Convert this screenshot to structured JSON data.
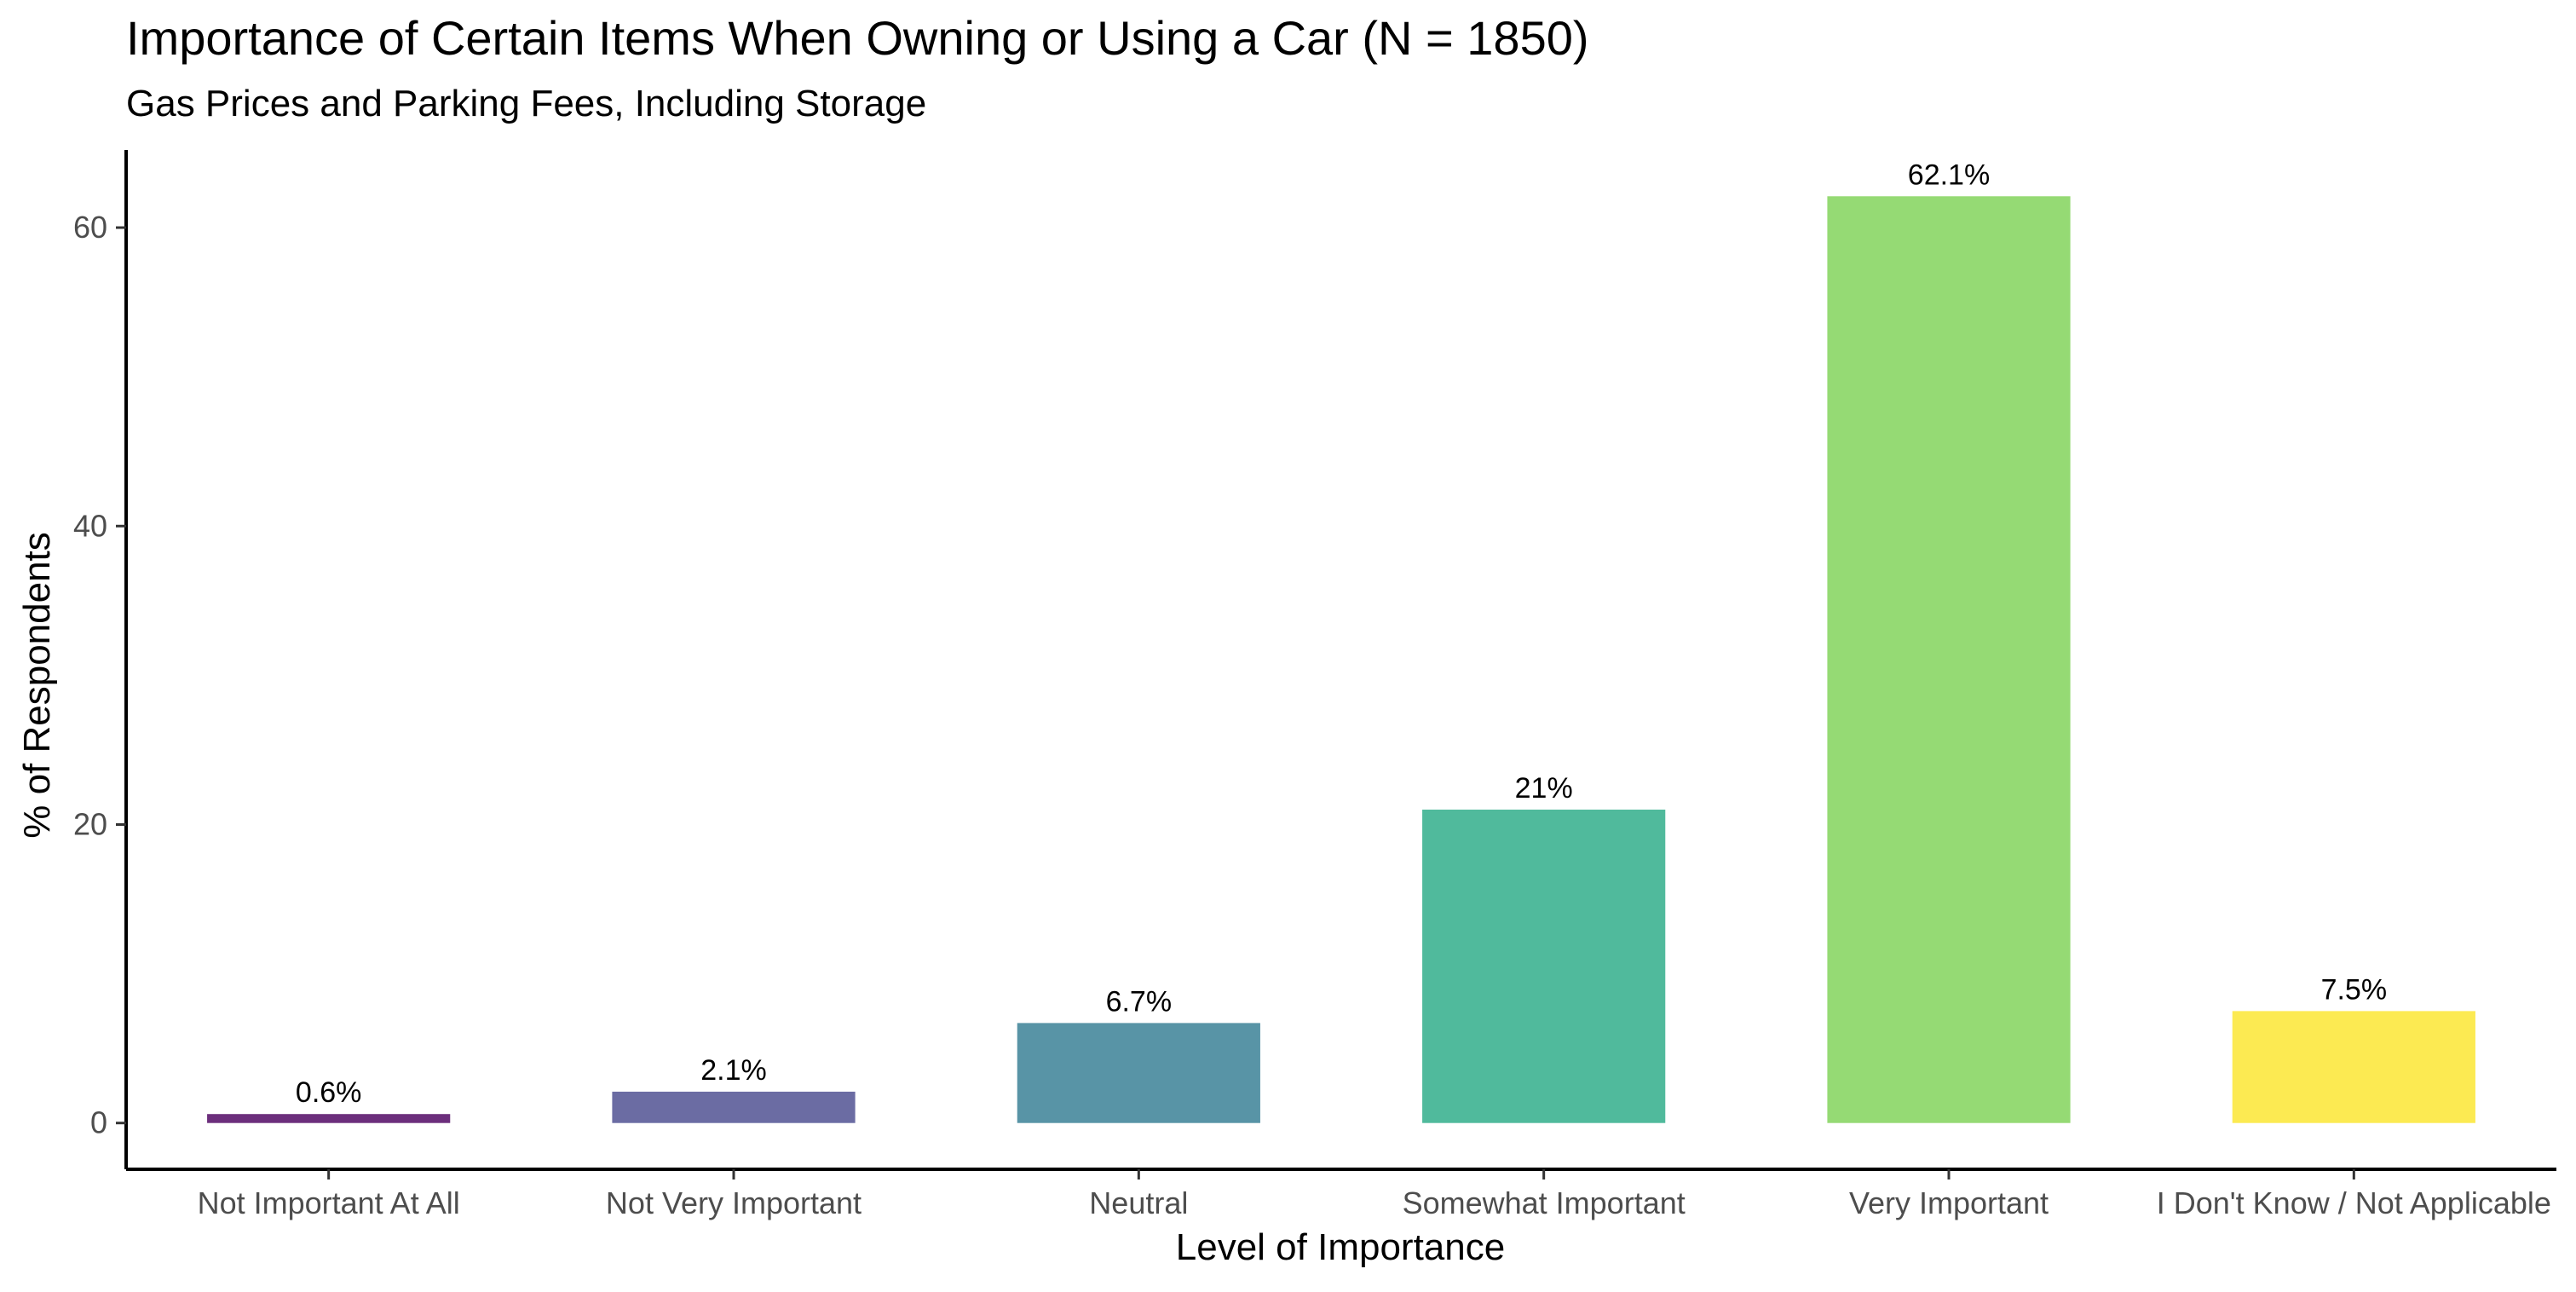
{
  "chart_data": {
    "type": "bar",
    "title": "Importance of Certain Items When Owning or Using a Car (N = 1850)",
    "subtitle": "Gas Prices and Parking Fees, Including Storage",
    "xlabel": "Level of Importance",
    "ylabel": "% of Respondents",
    "categories": [
      "Not Important At All",
      "Not Very Important",
      "Neutral",
      "Somewhat Important",
      "Very Important",
      "I Don't Know / Not Applicable"
    ],
    "values": [
      0.6,
      2.1,
      6.7,
      21,
      62.1,
      7.5
    ],
    "data_labels": [
      "0.6%",
      "2.1%",
      "6.7%",
      "21%",
      "62.1%",
      "7.5%"
    ],
    "colors": [
      "#6C2F7C",
      "#6B6CA3",
      "#5894A6",
      "#50BA9C",
      "#95DA74",
      "#FCEA52"
    ],
    "y_ticks": [
      0,
      20,
      40,
      60
    ],
    "ylim": [
      -3.1,
      65.2
    ],
    "grid": false,
    "legend": "none"
  }
}
